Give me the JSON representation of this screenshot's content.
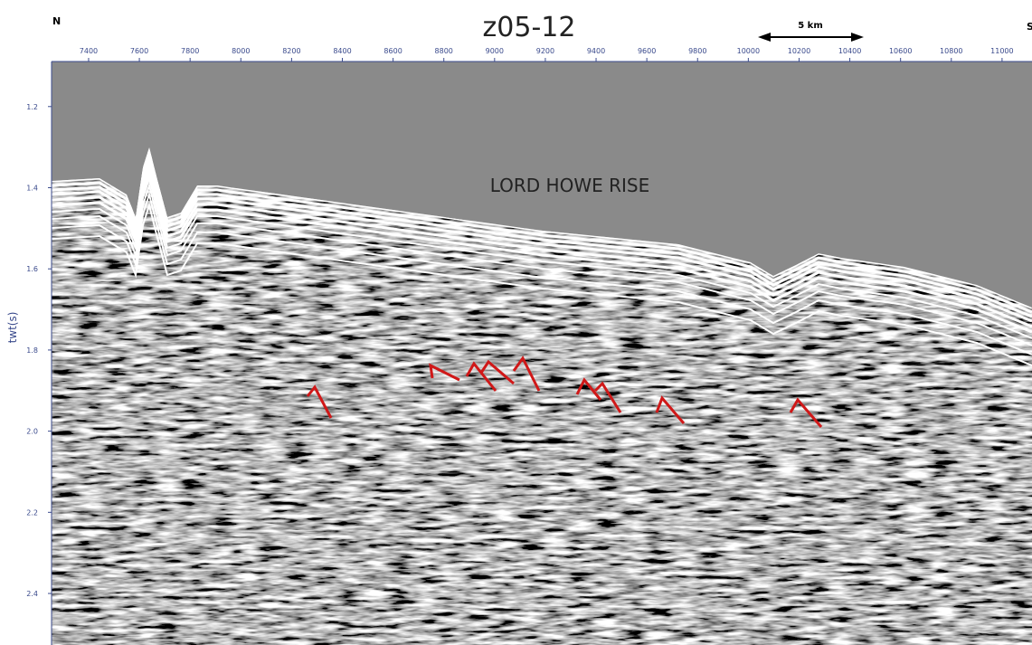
{
  "chart_data": {
    "type": "seismic-section",
    "title": "z05-12",
    "direction_left": "N",
    "direction_right": "S",
    "scale_bar": "5 km",
    "annotation": "LORD HOWE RISE",
    "y_label": "twt(s)",
    "xlim": [
      7254,
      11118
    ],
    "ylim": [
      1.089,
      2.527
    ],
    "xticks": [
      7400,
      7600,
      7800,
      8000,
      8200,
      8400,
      8600,
      8800,
      9000,
      9200,
      9400,
      9600,
      9800,
      10000,
      10200,
      10400,
      10600,
      10800,
      11000
    ],
    "yticks": [
      1.2,
      1.4,
      1.6,
      1.8,
      {
        "value": 2,
        "label": "2.0"
      },
      2.2,
      2.4
    ]
  }
}
